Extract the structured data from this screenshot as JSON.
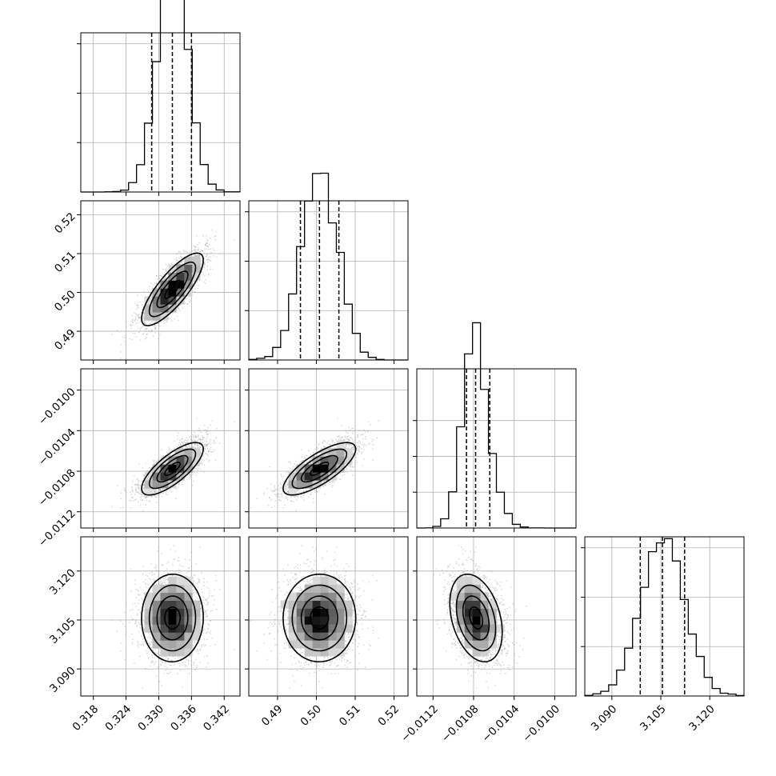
{
  "chart_data": {
    "type": "corner",
    "parameters": [
      {
        "ticks": [
          0.318,
          0.324,
          0.33,
          0.336,
          0.342
        ],
        "tick_labels": [
          "0.318",
          "0.324",
          "0.330",
          "0.336",
          "0.342"
        ],
        "range": [
          0.3157,
          0.3449
        ],
        "mean": 0.3325,
        "sigma": 0.0028,
        "quantiles": [
          0.3287,
          0.3325,
          0.336
        ],
        "skew": 0.0,
        "hist_ymax": 0.145
      },
      {
        "ticks": [
          0.49,
          0.5,
          0.51,
          0.52
        ],
        "tick_labels": [
          "0.49",
          "0.50",
          "0.51",
          "0.52"
        ],
        "range": [
          0.4826,
          0.5236
        ],
        "mean": 0.5008,
        "sigma": 0.0046,
        "quantiles": [
          0.4959,
          0.5008,
          0.5058
        ],
        "skew": 0.0,
        "hist_ymax": 0.145
      },
      {
        "ticks": [
          -0.0112,
          -0.0108,
          -0.0104,
          -0.01
        ],
        "tick_labels": [
          "−0.0112",
          "−0.0108",
          "−0.0104",
          "−0.0100"
        ],
        "range": [
          -0.01136,
          -0.00979
        ],
        "mean": -0.01075,
        "sigma": 0.00013,
        "quantiles": [
          -0.01087,
          -0.01078,
          -0.01064
        ],
        "skew": 1.6,
        "hist_ymax": 0.2
      },
      {
        "ticks": [
          3.09,
          3.105,
          3.12
        ],
        "tick_labels": [
          "3.090",
          "3.105",
          "3.120"
        ],
        "range": [
          3.0817,
          3.1305
        ],
        "mean": 3.1055,
        "sigma": 0.0068,
        "quantiles": [
          3.0987,
          3.1055,
          3.1123
        ],
        "skew": 0.0,
        "hist_ymax": 0.145
      }
    ],
    "correlations": [
      [
        1.0,
        0.8,
        0.75,
        0.0
      ],
      [
        0.8,
        1.0,
        0.75,
        0.0
      ],
      [
        0.75,
        0.75,
        1.0,
        -0.35
      ],
      [
        0.0,
        0.0,
        -0.35,
        1.0
      ]
    ],
    "histogram_bins": 20,
    "contour_levels": [
      "0.5 sigma",
      "1 sigma",
      "1.5 sigma",
      "2 sigma"
    ],
    "quantile_lines": "dashed",
    "grid": true,
    "colors": {
      "samples": "#a0a0a0",
      "contours": "#000000",
      "density": "#000000",
      "axes": "#000000",
      "grid": "#b0b0b0"
    }
  }
}
